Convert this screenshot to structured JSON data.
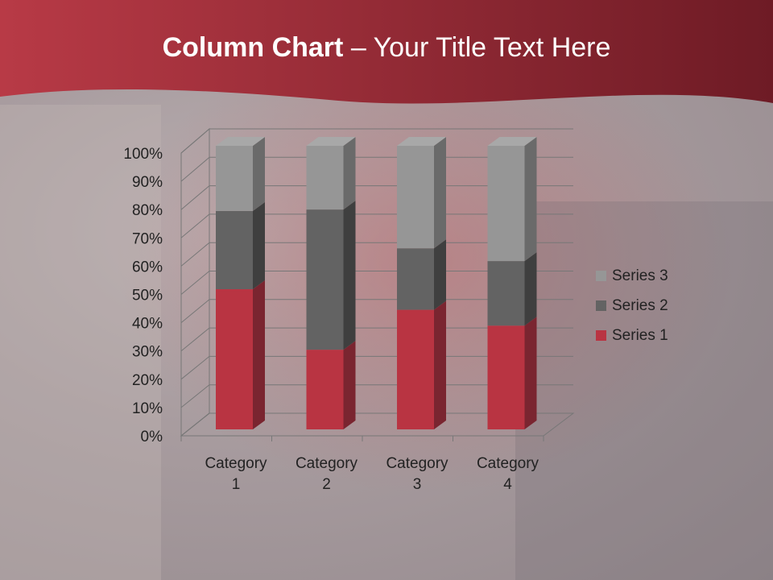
{
  "slide": {
    "title_bold": "Column Chart",
    "title_rest": " – Your Title Text Here"
  },
  "colors": {
    "header": "#a8313d",
    "series1": "#b93442",
    "series2": "#636363",
    "series3": "#969696"
  },
  "chart_data": {
    "type": "bar",
    "stacking": "percent",
    "style": "3d-column",
    "categories": [
      "Category 1",
      "Category 2",
      "Category 3",
      "Category 4"
    ],
    "series": [
      {
        "name": "Series 1",
        "values": [
          4.3,
          2.5,
          3.5,
          4.5
        ]
      },
      {
        "name": "Series 2",
        "values": [
          2.4,
          4.4,
          1.8,
          2.8
        ]
      },
      {
        "name": "Series 3",
        "values": [
          2,
          2,
          3,
          5
        ]
      }
    ],
    "yticks": [
      "0%",
      "10%",
      "20%",
      "30%",
      "40%",
      "50%",
      "60%",
      "70%",
      "80%",
      "90%",
      "100%"
    ],
    "ylim": [
      0,
      100
    ],
    "grid": true,
    "legend": "right"
  }
}
